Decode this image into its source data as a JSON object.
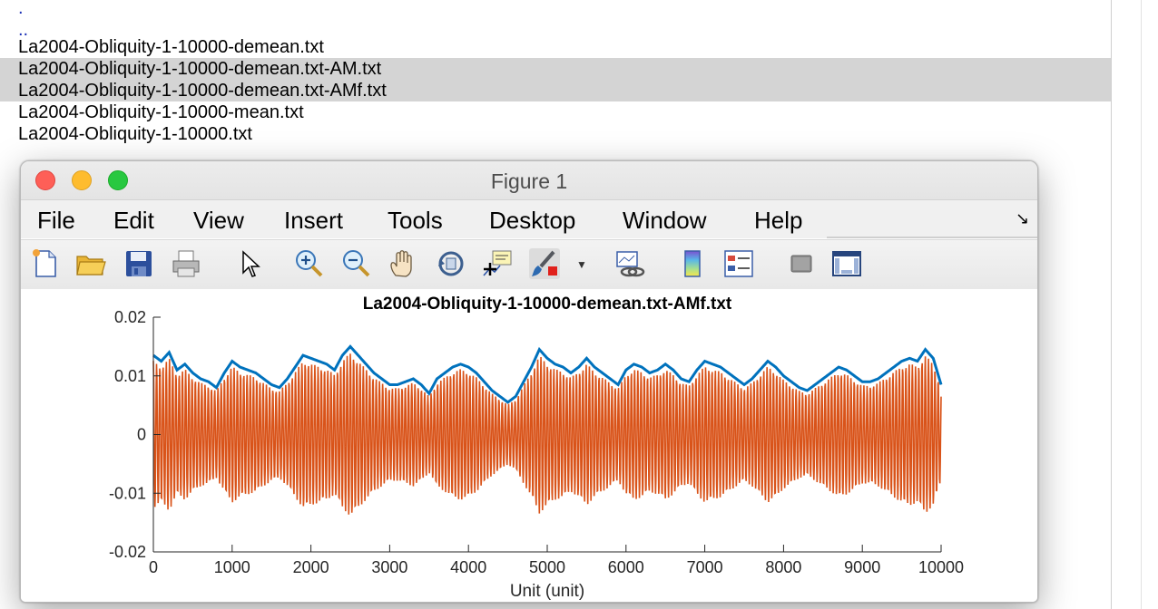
{
  "file_list": {
    "items": [
      {
        "label": ".",
        "selected": false,
        "dir": true
      },
      {
        "label": "..",
        "selected": false,
        "dir": true
      },
      {
        "label": "La2004-Obliquity-1-10000-demean.txt",
        "selected": false,
        "dir": false
      },
      {
        "label": "La2004-Obliquity-1-10000-demean.txt-AM.txt",
        "selected": true,
        "dir": false
      },
      {
        "label": "La2004-Obliquity-1-10000-demean.txt-AMf.txt",
        "selected": true,
        "dir": false
      },
      {
        "label": "La2004-Obliquity-1-10000-mean.txt",
        "selected": false,
        "dir": false
      },
      {
        "label": "La2004-Obliquity-1-10000.txt",
        "selected": false,
        "dir": false
      }
    ]
  },
  "figure": {
    "window_title": "Figure 1",
    "menu": [
      "File",
      "Edit",
      "View",
      "Insert",
      "Tools",
      "Desktop",
      "Window",
      "Help"
    ],
    "toolbar_icons": [
      "new-figure-icon",
      "open-folder-icon",
      "save-icon",
      "print-icon",
      "pointer-icon",
      "zoom-in-icon",
      "zoom-out-icon",
      "pan-hand-icon",
      "rotate-3d-icon",
      "data-cursor-icon",
      "brush-icon",
      "link-plot-icon",
      "colorbar-icon",
      "legend-icon",
      "hide-plot-tools-icon",
      "show-plot-tools-icon"
    ]
  },
  "colors": {
    "envelope": "#0072bd",
    "signal": "#d95319",
    "selection": "#d4d4d4"
  },
  "chart_data": {
    "type": "line",
    "title": "La2004-Obliquity-1-10000-demean.txt-AMf.txt",
    "xlabel": "Unit (unit)",
    "ylabel": "",
    "xlim": [
      0,
      10000
    ],
    "ylim": [
      -0.02,
      0.02
    ],
    "xticks": [
      "0",
      "1000",
      "2000",
      "3000",
      "4000",
      "5000",
      "6000",
      "7000",
      "8000",
      "9000",
      "10000"
    ],
    "yticks": [
      "-0.02",
      "-0.01",
      "0",
      "0.01",
      "0.02"
    ],
    "series": [
      {
        "color": "#0072bd",
        "role": "amplitude envelope",
        "x": [
          0,
          100,
          200,
          300,
          400,
          500,
          600,
          700,
          800,
          900,
          1000,
          1100,
          1200,
          1300,
          1400,
          1500,
          1600,
          1700,
          1800,
          1900,
          2000,
          2100,
          2200,
          2300,
          2400,
          2500,
          2600,
          2700,
          2800,
          2900,
          3000,
          3100,
          3200,
          3300,
          3400,
          3500,
          3600,
          3700,
          3800,
          3900,
          4000,
          4100,
          4200,
          4300,
          4400,
          4500,
          4600,
          4700,
          4800,
          4900,
          5000,
          5100,
          5200,
          5300,
          5400,
          5500,
          5600,
          5700,
          5800,
          5900,
          6000,
          6100,
          6200,
          6300,
          6400,
          6500,
          6600,
          6700,
          6800,
          6900,
          7000,
          7100,
          7200,
          7300,
          7400,
          7500,
          7600,
          7700,
          7800,
          7900,
          8000,
          8100,
          8200,
          8300,
          8400,
          8500,
          8600,
          8700,
          8800,
          8900,
          9000,
          9100,
          9200,
          9300,
          9400,
          9500,
          9600,
          9700,
          9800,
          9900,
          10000
        ],
        "y": [
          0.0135,
          0.0125,
          0.014,
          0.011,
          0.012,
          0.0105,
          0.0095,
          0.009,
          0.008,
          0.0105,
          0.0125,
          0.0115,
          0.011,
          0.0105,
          0.0095,
          0.0085,
          0.008,
          0.0095,
          0.0115,
          0.0135,
          0.013,
          0.0125,
          0.012,
          0.011,
          0.0135,
          0.015,
          0.0135,
          0.012,
          0.0105,
          0.0095,
          0.0085,
          0.0085,
          0.009,
          0.0095,
          0.0085,
          0.007,
          0.0095,
          0.0105,
          0.0115,
          0.012,
          0.0115,
          0.0105,
          0.009,
          0.0075,
          0.0065,
          0.0055,
          0.0065,
          0.009,
          0.0115,
          0.0145,
          0.013,
          0.012,
          0.0115,
          0.0105,
          0.0115,
          0.013,
          0.0115,
          0.0105,
          0.0095,
          0.0085,
          0.011,
          0.012,
          0.0115,
          0.0105,
          0.011,
          0.012,
          0.011,
          0.0095,
          0.009,
          0.011,
          0.0125,
          0.012,
          0.0115,
          0.0105,
          0.0095,
          0.0085,
          0.0095,
          0.011,
          0.0125,
          0.0115,
          0.01,
          0.009,
          0.008,
          0.0075,
          0.0085,
          0.0095,
          0.0105,
          0.0115,
          0.011,
          0.01,
          0.009,
          0.009,
          0.0095,
          0.0105,
          0.0115,
          0.0125,
          0.013,
          0.0125,
          0.0145,
          0.013,
          0.0085
        ]
      },
      {
        "color": "#d95319",
        "role": "filtered signal",
        "approx_period": 41
      }
    ]
  }
}
